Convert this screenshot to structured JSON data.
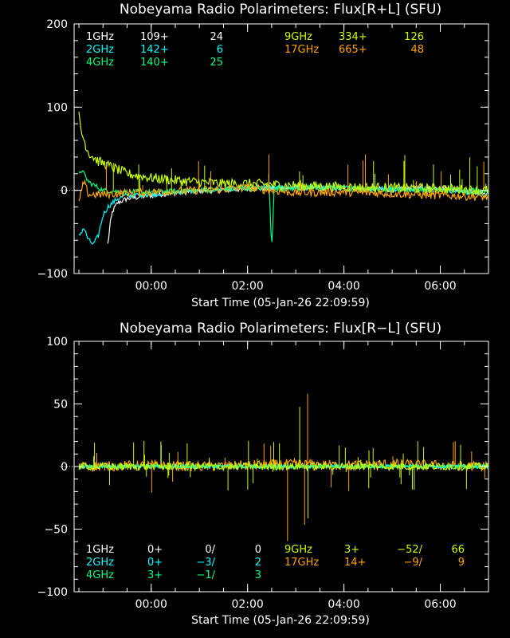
{
  "colors": {
    "1GHz": "#ffffff",
    "2GHz": "#00ffff",
    "4GHz": "#00ff7f",
    "9GHz": "#c8ff00",
    "17GHz": "#ffa500",
    "axis": "#ffffff",
    "background": "#000000"
  },
  "chart_data": [
    {
      "type": "line",
      "title": "Nobeyama Radio Polarimeters: Flux[R+L] (SFU)",
      "xlabel": "Start Time (05-Jan-26 22:09:59)",
      "ylabel": "",
      "ylim": [
        -100,
        200
      ],
      "yticks": [
        "200",
        "100",
        "0",
        "−100"
      ],
      "ytick_values": [
        200,
        100,
        0,
        -100
      ],
      "xlim": [
        -1.6,
        7.0
      ],
      "xticks": [
        "00:00",
        "02:00",
        "04:00",
        "06:00"
      ],
      "xtick_values": [
        0,
        2,
        4,
        6
      ],
      "x_unit": "hours after 00:00",
      "legend": [
        {
          "band": "1GHz",
          "c1": "109+",
          "c2": "24"
        },
        {
          "band": "2GHz",
          "c1": "142+",
          "c2": "6"
        },
        {
          "band": "4GHz",
          "c1": "140+",
          "c2": "25"
        },
        {
          "band": "9GHz",
          "c1": "334+",
          "c2": "126"
        },
        {
          "band": "17GHz",
          "c1": "665+",
          "c2": "48"
        }
      ],
      "series": [
        {
          "name": "1GHz",
          "x": [
            -0.9,
            -0.85,
            -0.8,
            -0.7,
            -0.5,
            0,
            0.5,
            1,
            1.5,
            2,
            3,
            4,
            5,
            5.5,
            6,
            6.5,
            7.0
          ],
          "y": [
            -65,
            -40,
            -25,
            -15,
            -10,
            -6,
            -3,
            -1,
            0,
            2,
            3,
            2,
            1,
            2,
            3,
            0,
            -5
          ]
        },
        {
          "name": "2GHz",
          "x": [
            -1.5,
            -1.4,
            -1.3,
            -1.2,
            -1.1,
            -1.0,
            -0.9,
            -0.8,
            -0.7,
            -0.5,
            0,
            1,
            2,
            3,
            4,
            5,
            6,
            7.0
          ],
          "y": [
            -55,
            -45,
            -60,
            -65,
            -55,
            -30,
            -20,
            -15,
            -10,
            -6,
            -5,
            0,
            3,
            4,
            3,
            2,
            1,
            -5
          ]
        },
        {
          "name": "4GHz",
          "x": [
            -1.5,
            -1.45,
            -1.3,
            -1.0,
            -0.5,
            0,
            1,
            2,
            2.45,
            2.5,
            2.55,
            3,
            4,
            5,
            6,
            7.0
          ],
          "y": [
            20,
            25,
            10,
            0,
            -2,
            -2,
            0,
            2,
            2,
            -70,
            2,
            2,
            2,
            1,
            1,
            0
          ]
        },
        {
          "name": "9GHz",
          "x": [
            -1.5,
            -1.45,
            -1.3,
            -1.1,
            -0.9,
            -0.7,
            -0.5,
            0,
            0.5,
            1,
            1.5,
            2,
            3,
            4,
            5,
            6,
            7.0
          ],
          "y": [
            90,
            70,
            45,
            35,
            30,
            25,
            20,
            15,
            12,
            10,
            8,
            8,
            6,
            4,
            3,
            2,
            0
          ]
        },
        {
          "name": "17GHz",
          "x": [
            -1.5,
            -1.4,
            -1.3,
            -1.0,
            -0.5,
            0,
            1,
            2,
            3,
            4,
            5,
            6,
            7.0
          ],
          "y": [
            -15,
            10,
            -5,
            -5,
            -3,
            -2,
            0,
            3,
            -3,
            -2,
            -4,
            -6,
            -8
          ]
        }
      ]
    },
    {
      "type": "line",
      "title": "Nobeyama Radio Polarimeters: Flux[R−L] (SFU)",
      "xlabel": "Start Time (05-Jan-26 22:09:59)",
      "ylabel": "",
      "ylim": [
        -100,
        100
      ],
      "yticks": [
        "100",
        "50",
        "0",
        "−50",
        "−100"
      ],
      "ytick_values": [
        100,
        50,
        0,
        -50,
        -100
      ],
      "xlim": [
        -1.6,
        7.0
      ],
      "xticks": [
        "00:00",
        "02:00",
        "04:00",
        "06:00"
      ],
      "xtick_values": [
        0,
        2,
        4,
        6
      ],
      "x_unit": "hours after 00:00",
      "legend": [
        {
          "band": "1GHz",
          "c1": "0+",
          "c2": "0/",
          "c3": "0"
        },
        {
          "band": "2GHz",
          "c1": "0+",
          "c2": "−3/",
          "c3": "2"
        },
        {
          "band": "4GHz",
          "c1": "3+",
          "c2": "−1/",
          "c3": "3"
        },
        {
          "band": "9GHz",
          "c1": "3+",
          "c2": "−52/",
          "c3": "66"
        },
        {
          "band": "17GHz",
          "c1": "14+",
          "c2": "−9/",
          "c3": "9"
        }
      ],
      "series": [
        {
          "name": "17GHz",
          "x": [
            -1.5,
            0,
            1,
            2,
            3,
            4,
            5,
            6,
            7.0
          ],
          "y": [
            0,
            1,
            0,
            1,
            2,
            1,
            2,
            1,
            0
          ]
        },
        {
          "name": "4GHz",
          "x": [
            -1.5,
            0,
            2,
            4,
            6,
            7.0
          ],
          "y": [
            0,
            0,
            0,
            0,
            0,
            0
          ]
        },
        {
          "name": "2GHz",
          "x": [
            -1.5,
            0,
            2,
            4,
            6,
            7.0
          ],
          "y": [
            0,
            0,
            0,
            0,
            0,
            0
          ]
        },
        {
          "name": "9GHz",
          "x": [
            -1.5,
            0,
            2,
            4,
            6,
            7.0
          ],
          "y": [
            0,
            0,
            0,
            0,
            0,
            0
          ]
        }
      ]
    }
  ]
}
